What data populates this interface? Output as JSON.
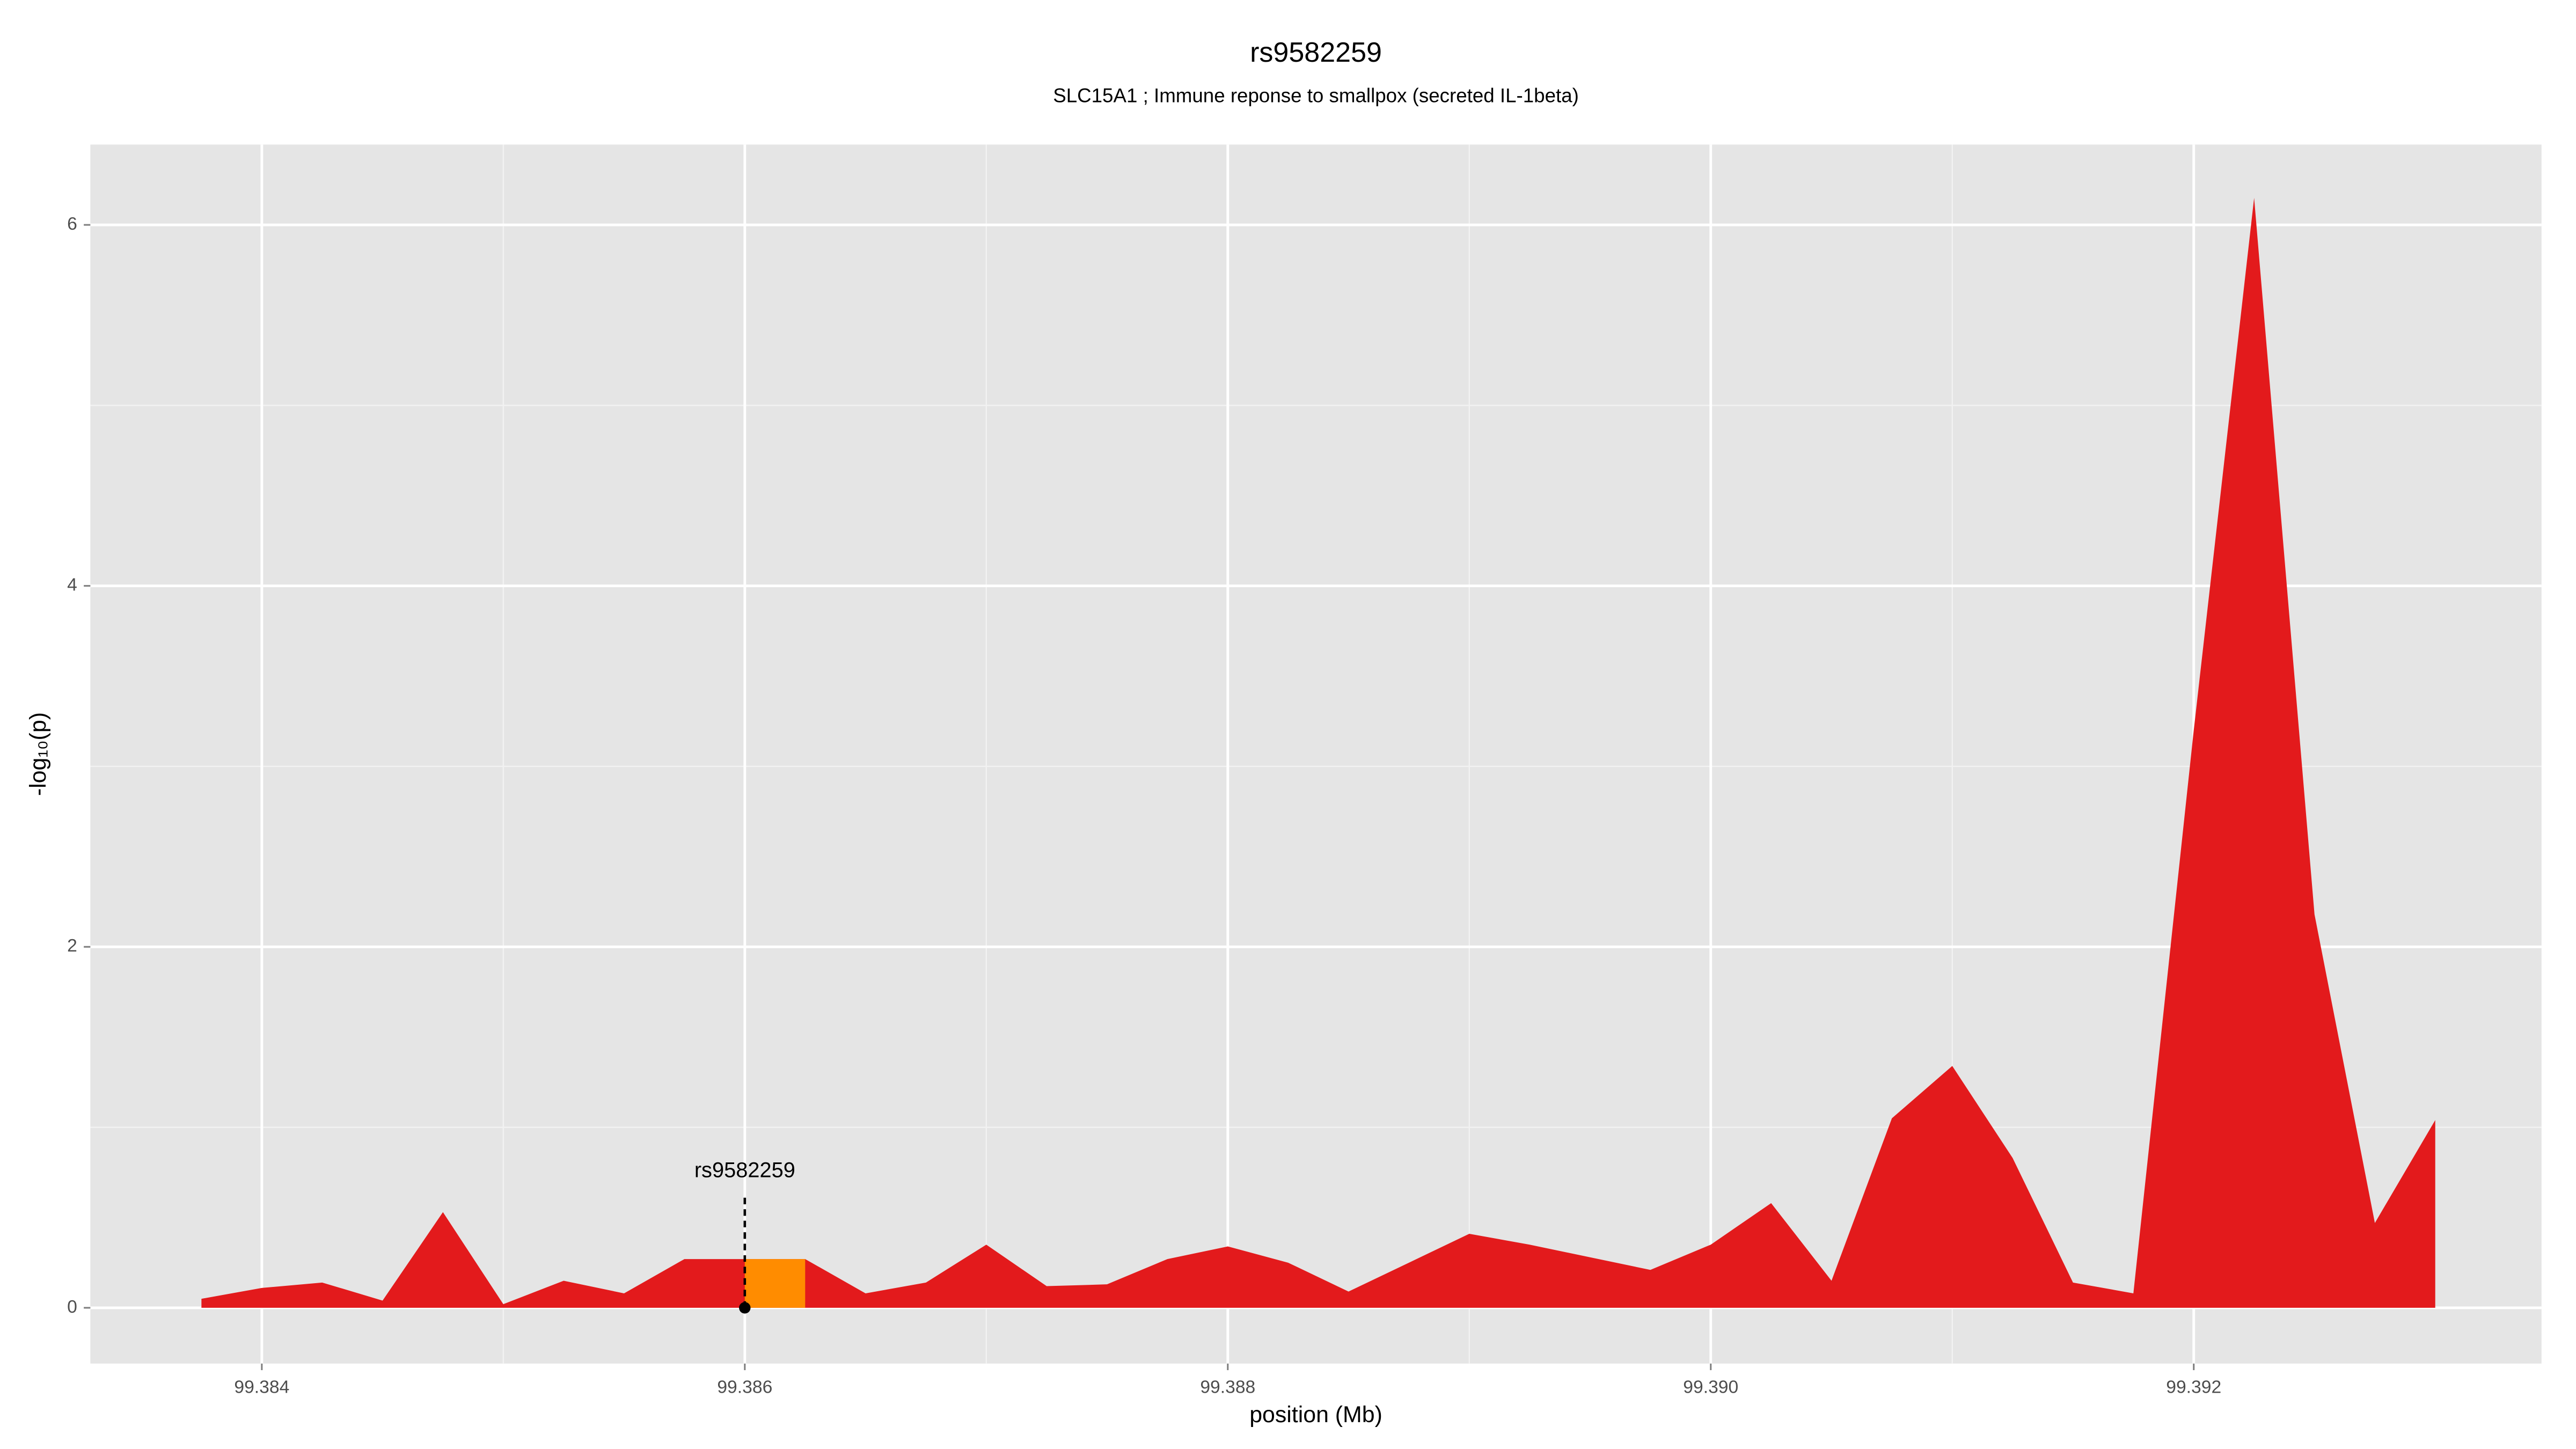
{
  "chart_data": {
    "type": "area",
    "title": "rs9582259",
    "subtitle": "SLC15A1 ; Immune reponse to smallpox (secreted IL-1beta)",
    "xlabel": "position (Mb)",
    "ylabel": "-log₁₀(p)",
    "x": [
      99.38375,
      99.384,
      99.38425,
      99.3845,
      99.38475,
      99.385,
      99.38525,
      99.3855,
      99.38575,
      99.386,
      99.38625,
      99.3865,
      99.38675,
      99.387,
      99.38725,
      99.3875,
      99.38775,
      99.388,
      99.38825,
      99.3885,
      99.38875,
      99.389,
      99.38925,
      99.3895,
      99.38975,
      99.39,
      99.39025,
      99.3905,
      99.39075,
      99.391,
      99.39125,
      99.3915,
      99.39175,
      99.392,
      99.39225,
      99.3925,
      99.39275,
      99.393
    ],
    "series": [
      {
        "color": "#e31a1c",
        "values": [
          0.05,
          0.11,
          0.14,
          0.04,
          0.53,
          0.02,
          0.15,
          0.08,
          0.27,
          0.27,
          0.27,
          0.08,
          0.14,
          0.35,
          0.12,
          0.13,
          0.27,
          0.34,
          0.25,
          0.09,
          0.25,
          0.41,
          0.35,
          0.28,
          0.21,
          0.35,
          0.58,
          0.15,
          1.05,
          1.34,
          0.83,
          0.14,
          0.08,
          3.2,
          6.15,
          2.18,
          0.47,
          1.04
        ]
      }
    ],
    "highlight": {
      "color": "#ff8c00",
      "x": [
        99.386,
        99.38625
      ],
      "values": [
        0.27,
        0.27
      ]
    },
    "annotation": {
      "text": "rs9582259",
      "x": 99.386,
      "y": 0
    },
    "xlim": [
      99.38329,
      99.39344
    ],
    "ylim": [
      -0.309,
      6.445
    ],
    "xticks": [
      {
        "value": 99.384,
        "label": "99.384"
      },
      {
        "value": 99.386,
        "label": "99.386"
      },
      {
        "value": 99.388,
        "label": "99.388"
      },
      {
        "value": 99.39,
        "label": "99.390"
      },
      {
        "value": 99.392,
        "label": "99.392"
      }
    ],
    "yticks": [
      0,
      2,
      4,
      6
    ],
    "grid": true
  }
}
